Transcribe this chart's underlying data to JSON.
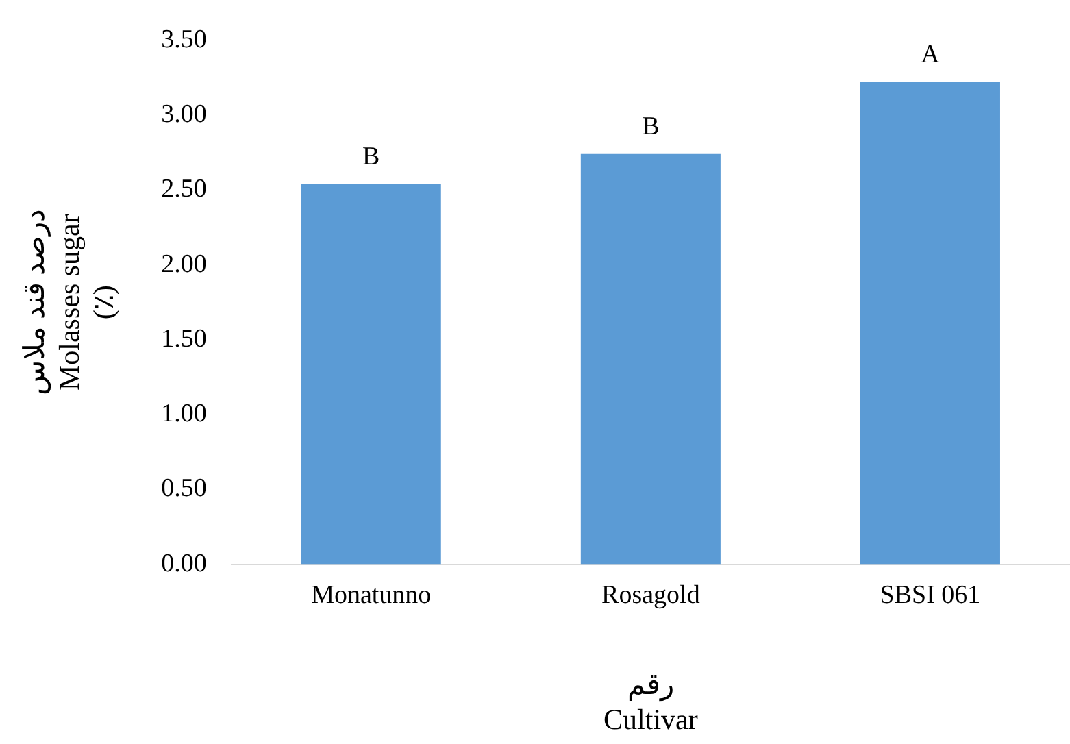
{
  "chart_data": {
    "type": "bar",
    "categories": [
      "Monatunno",
      "Rosagold",
      "SBSI 061"
    ],
    "values": [
      2.54,
      2.74,
      3.22
    ],
    "color": "#5b9bd5",
    "ylim": [
      0,
      3.5
    ],
    "yticks": [
      {
        "value": 0,
        "label": "0.00"
      },
      {
        "value": 0.5,
        "label": "0.50"
      },
      {
        "value": 1,
        "label": "1.00"
      },
      {
        "value": 1.5,
        "label": "1.50"
      },
      {
        "value": 2,
        "label": "2.00"
      },
      {
        "value": 2.5,
        "label": "2.50"
      },
      {
        "value": 3,
        "label": "3.00"
      },
      {
        "value": 3.5,
        "label": "3.50"
      }
    ],
    "grid": false,
    "legend": false,
    "xlabel": "رقم\nCultivar",
    "ylabel": "درصد قند ملاس\nMolasses sugar\n(٪)",
    "annotations": [
      {
        "text": "B",
        "x": "Monatunno",
        "y": 2.54
      },
      {
        "text": "B",
        "x": "Rosagold",
        "y": 2.74
      },
      {
        "text": "A",
        "x": "SBSI 061",
        "y": 3.22
      }
    ]
  }
}
